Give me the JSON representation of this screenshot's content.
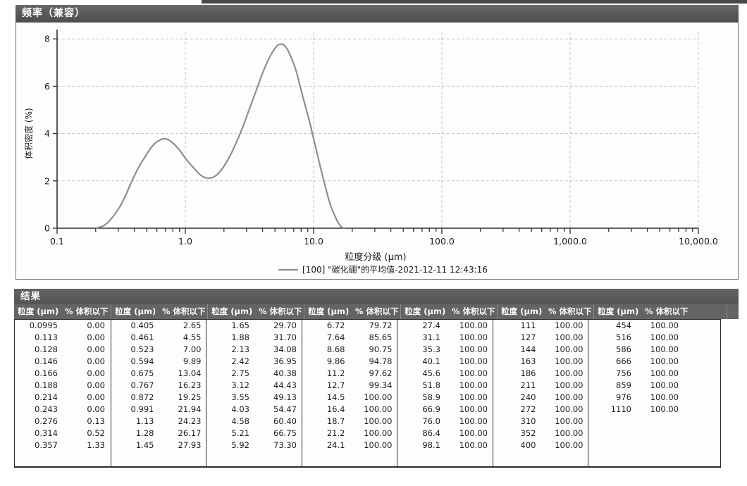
{
  "frequency_panel": {
    "title": "频率（兼容）"
  },
  "chart_data": {
    "type": "line",
    "title": "频率（兼容）",
    "xlabel": "粒度分级 (µm)",
    "ylabel": "体积密度 (%)",
    "x_scale": "log",
    "xlim": [
      0.1,
      10000
    ],
    "ylim": [
      0,
      8
    ],
    "x_ticks": [
      0.1,
      1,
      10,
      100,
      1000,
      10000
    ],
    "x_tick_labels": [
      "0.1",
      "1.0",
      "10.0",
      "100.0",
      "1,000.0",
      "10,000.0"
    ],
    "y_ticks": [
      0,
      2,
      4,
      6,
      8
    ],
    "grid": "dashed",
    "legend_position": "bottom",
    "series": [
      {
        "name": "[100] \"碳化硼\"的平均值-2021-12-11 12:43:16",
        "color": "#8e8e8e",
        "x": [
          0.2,
          0.23,
          0.26,
          0.3,
          0.34,
          0.38,
          0.43,
          0.49,
          0.55,
          0.62,
          0.7,
          0.79,
          0.9,
          1.02,
          1.16,
          1.31,
          1.48,
          1.68,
          1.9,
          2.15,
          2.44,
          2.77,
          3.14,
          3.56,
          4.03,
          4.57,
          5.18,
          5.6,
          5.92,
          6.4,
          7.25,
          8.2,
          9.3,
          10.5,
          11.9,
          13.5,
          15.3,
          16.5,
          17.5
        ],
        "y": [
          0,
          0.1,
          0.35,
          0.8,
          1.35,
          1.95,
          2.55,
          3.05,
          3.45,
          3.7,
          3.78,
          3.62,
          3.3,
          2.9,
          2.55,
          2.25,
          2.12,
          2.18,
          2.45,
          2.9,
          3.5,
          4.2,
          5.0,
          5.8,
          6.6,
          7.25,
          7.7,
          7.78,
          7.72,
          7.45,
          6.7,
          5.6,
          4.5,
          3.3,
          2.1,
          1.0,
          0.3,
          0.05,
          0
        ]
      }
    ]
  },
  "results_panel": {
    "title": "结果",
    "column_headers": {
      "size": "粒度 (µm)",
      "pct": "% 体积以下"
    },
    "groups": [
      {
        "rows": [
          [
            "0.0995",
            "0.00"
          ],
          [
            "0.113",
            "0.00"
          ],
          [
            "0.128",
            "0.00"
          ],
          [
            "0.146",
            "0.00"
          ],
          [
            "0.166",
            "0.00"
          ],
          [
            "0.188",
            "0.00"
          ],
          [
            "0.214",
            "0.00"
          ],
          [
            "0.243",
            "0.00"
          ],
          [
            "0.276",
            "0.13"
          ],
          [
            "0.314",
            "0.52"
          ],
          [
            "0.357",
            "1.33"
          ]
        ]
      },
      {
        "rows": [
          [
            "0.405",
            "2.65"
          ],
          [
            "0.461",
            "4.55"
          ],
          [
            "0.523",
            "7.00"
          ],
          [
            "0.594",
            "9.89"
          ],
          [
            "0.675",
            "13.04"
          ],
          [
            "0.767",
            "16.23"
          ],
          [
            "0.872",
            "19.25"
          ],
          [
            "0.991",
            "21.94"
          ],
          [
            "1.13",
            "24.23"
          ],
          [
            "1.28",
            "26.17"
          ],
          [
            "1.45",
            "27.93"
          ]
        ]
      },
      {
        "rows": [
          [
            "1.65",
            "29.70"
          ],
          [
            "1.88",
            "31.70"
          ],
          [
            "2.13",
            "34.08"
          ],
          [
            "2.42",
            "36.95"
          ],
          [
            "2.75",
            "40.38"
          ],
          [
            "3.12",
            "44.43"
          ],
          [
            "3.55",
            "49.13"
          ],
          [
            "4.03",
            "54.47"
          ],
          [
            "4.58",
            "60.40"
          ],
          [
            "5.21",
            "66.75"
          ],
          [
            "5.92",
            "73.30"
          ]
        ]
      },
      {
        "rows": [
          [
            "6.72",
            "79.72"
          ],
          [
            "7.64",
            "85.65"
          ],
          [
            "8.68",
            "90.75"
          ],
          [
            "9.86",
            "94.78"
          ],
          [
            "11.2",
            "97.62"
          ],
          [
            "12.7",
            "99.34"
          ],
          [
            "14.5",
            "100.00"
          ],
          [
            "16.4",
            "100.00"
          ],
          [
            "18.7",
            "100.00"
          ],
          [
            "21.2",
            "100.00"
          ],
          [
            "24.1",
            "100.00"
          ]
        ]
      },
      {
        "rows": [
          [
            "27.4",
            "100.00"
          ],
          [
            "31.1",
            "100.00"
          ],
          [
            "35.3",
            "100.00"
          ],
          [
            "40.1",
            "100.00"
          ],
          [
            "45.6",
            "100.00"
          ],
          [
            "51.8",
            "100.00"
          ],
          [
            "58.9",
            "100.00"
          ],
          [
            "66.9",
            "100.00"
          ],
          [
            "76.0",
            "100.00"
          ],
          [
            "86.4",
            "100.00"
          ],
          [
            "98.1",
            "100.00"
          ]
        ]
      },
      {
        "rows": [
          [
            "111",
            "100.00"
          ],
          [
            "127",
            "100.00"
          ],
          [
            "144",
            "100.00"
          ],
          [
            "163",
            "100.00"
          ],
          [
            "186",
            "100.00"
          ],
          [
            "211",
            "100.00"
          ],
          [
            "240",
            "100.00"
          ],
          [
            "272",
            "100.00"
          ],
          [
            "310",
            "100.00"
          ],
          [
            "352",
            "100.00"
          ],
          [
            "400",
            "100.00"
          ]
        ]
      },
      {
        "rows": [
          [
            "454",
            "100.00"
          ],
          [
            "516",
            "100.00"
          ],
          [
            "586",
            "100.00"
          ],
          [
            "666",
            "100.00"
          ],
          [
            "756",
            "100.00"
          ],
          [
            "859",
            "100.00"
          ],
          [
            "976",
            "100.00"
          ],
          [
            "1110",
            "100.00"
          ]
        ]
      }
    ]
  },
  "colors": {
    "header_bar": "#58585a",
    "table_header": "#646467",
    "curve": "#8e8e8e",
    "grid": "#c4c4c4",
    "axis": "#2f2f2f",
    "text": "#1c1c1c"
  }
}
